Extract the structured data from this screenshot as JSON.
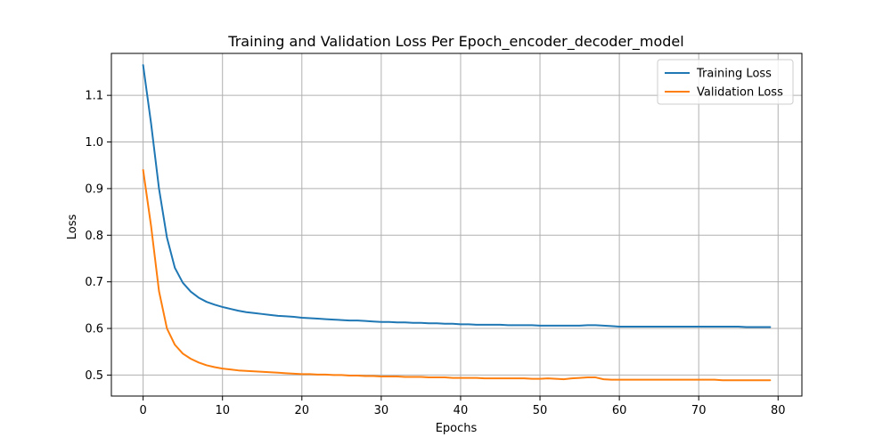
{
  "chart_data": {
    "type": "line",
    "title": "Training and Validation Loss Per Epoch_encoder_decoder_model",
    "xlabel": "Epochs",
    "ylabel": "Loss",
    "xlim": [
      -4,
      83
    ],
    "ylim": [
      0.455,
      1.19
    ],
    "xticks": [
      0,
      10,
      20,
      30,
      40,
      50,
      60,
      70,
      80
    ],
    "yticks": [
      0.5,
      0.6,
      0.7,
      0.8,
      0.9,
      1.0,
      1.1
    ],
    "ytick_labels": [
      "0.5",
      "0.6",
      "0.7",
      "0.8",
      "0.9",
      "1.0",
      "1.1"
    ],
    "grid": true,
    "legend_position": "top-right",
    "x": [
      0,
      1,
      2,
      3,
      4,
      5,
      6,
      7,
      8,
      9,
      10,
      11,
      12,
      13,
      14,
      15,
      16,
      17,
      18,
      19,
      20,
      21,
      22,
      23,
      24,
      25,
      26,
      27,
      28,
      29,
      30,
      31,
      32,
      33,
      34,
      35,
      36,
      37,
      38,
      39,
      40,
      41,
      42,
      43,
      44,
      45,
      46,
      47,
      48,
      49,
      50,
      51,
      52,
      53,
      54,
      55,
      56,
      57,
      58,
      59,
      60,
      61,
      62,
      63,
      64,
      65,
      66,
      67,
      68,
      69,
      70,
      71,
      72,
      73,
      74,
      75,
      76,
      77,
      78,
      79
    ],
    "series": [
      {
        "name": "Training Loss",
        "color": "#1f77b4",
        "values": [
          1.165,
          1.04,
          0.9,
          0.795,
          0.73,
          0.698,
          0.679,
          0.666,
          0.657,
          0.651,
          0.646,
          0.642,
          0.638,
          0.635,
          0.633,
          0.631,
          0.629,
          0.627,
          0.626,
          0.625,
          0.623,
          0.622,
          0.621,
          0.62,
          0.619,
          0.618,
          0.617,
          0.617,
          0.616,
          0.615,
          0.614,
          0.614,
          0.613,
          0.613,
          0.612,
          0.612,
          0.611,
          0.611,
          0.61,
          0.61,
          0.609,
          0.609,
          0.608,
          0.608,
          0.608,
          0.608,
          0.607,
          0.607,
          0.607,
          0.607,
          0.606,
          0.606,
          0.606,
          0.606,
          0.606,
          0.606,
          0.607,
          0.607,
          0.606,
          0.605,
          0.604,
          0.604,
          0.604,
          0.604,
          0.604,
          0.604,
          0.604,
          0.604,
          0.604,
          0.604,
          0.604,
          0.604,
          0.604,
          0.604,
          0.604,
          0.604,
          0.603,
          0.603,
          0.603,
          0.603
        ]
      },
      {
        "name": "Validation Loss",
        "color": "#ff7f0e",
        "values": [
          0.94,
          0.82,
          0.68,
          0.6,
          0.565,
          0.546,
          0.535,
          0.527,
          0.521,
          0.517,
          0.514,
          0.512,
          0.51,
          0.509,
          0.508,
          0.507,
          0.506,
          0.505,
          0.504,
          0.503,
          0.502,
          0.502,
          0.501,
          0.501,
          0.5,
          0.5,
          0.499,
          0.499,
          0.498,
          0.498,
          0.497,
          0.497,
          0.497,
          0.496,
          0.496,
          0.496,
          0.495,
          0.495,
          0.495,
          0.494,
          0.494,
          0.494,
          0.494,
          0.493,
          0.493,
          0.493,
          0.493,
          0.493,
          0.493,
          0.492,
          0.492,
          0.493,
          0.492,
          0.491,
          0.493,
          0.494,
          0.495,
          0.495,
          0.491,
          0.49,
          0.49,
          0.49,
          0.49,
          0.49,
          0.49,
          0.49,
          0.49,
          0.49,
          0.49,
          0.49,
          0.49,
          0.49,
          0.49,
          0.489,
          0.489,
          0.489,
          0.489,
          0.489,
          0.489,
          0.489
        ]
      }
    ]
  }
}
